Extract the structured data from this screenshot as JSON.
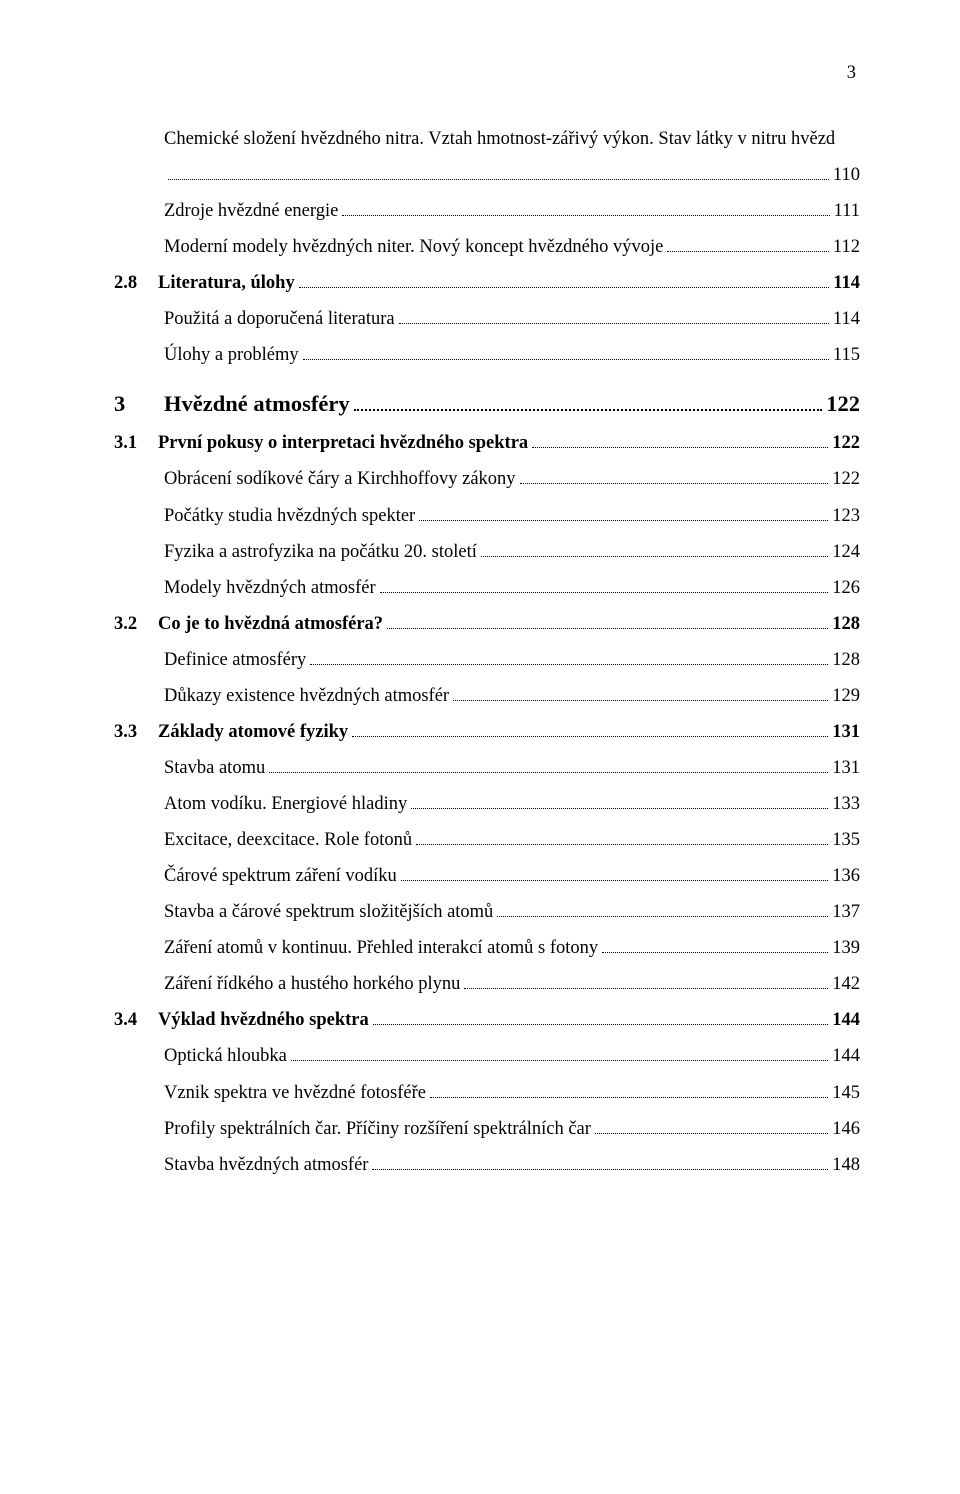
{
  "pageNumber": "3",
  "entries": [
    {
      "level": "sub",
      "text": "Chemické složení hvězdného nitra. Vztah hmotnost-zářivý výkon. Stav látky v nitru hvězd",
      "page": "110",
      "wrap": true
    },
    {
      "level": "sub",
      "text": "Zdroje hvězdné energie",
      "page": "111"
    },
    {
      "level": "sub",
      "text": "Moderní modely hvězdných niter. Nový koncept hvězdného vývoje",
      "page": "112"
    },
    {
      "level": "sec",
      "num": "2.8",
      "text": "Literatura, úlohy",
      "page": "114"
    },
    {
      "level": "sub",
      "text": "Použitá a doporučená literatura",
      "page": "114"
    },
    {
      "level": "sub",
      "text": "Úlohy a problémy",
      "page": "115"
    },
    {
      "level": "chap",
      "num": "3",
      "text": "Hvězdné atmosféry",
      "page": "122"
    },
    {
      "level": "sec",
      "num": "3.1",
      "text": "První pokusy o interpretaci hvězdného spektra",
      "page": "122"
    },
    {
      "level": "sub",
      "text": "Obrácení sodíkové čáry a Kirchhoffovy zákony",
      "page": "122"
    },
    {
      "level": "sub",
      "text": "Počátky studia hvězdných spekter",
      "page": "123"
    },
    {
      "level": "sub",
      "text": "Fyzika a astrofyzika na počátku 20. století",
      "page": "124"
    },
    {
      "level": "sub",
      "text": "Modely hvězdných atmosfér",
      "page": "126"
    },
    {
      "level": "sec",
      "num": "3.2",
      "text": "Co je to hvězdná atmosféra?",
      "page": "128"
    },
    {
      "level": "sub",
      "text": "Definice atmosféry",
      "page": "128"
    },
    {
      "level": "sub",
      "text": "Důkazy existence hvězdných atmosfér",
      "page": "129"
    },
    {
      "level": "sec",
      "num": "3.3",
      "text": "Základy atomové fyziky",
      "page": "131"
    },
    {
      "level": "sub",
      "text": "Stavba atomu",
      "page": "131"
    },
    {
      "level": "sub",
      "text": "Atom vodíku. Energiové hladiny",
      "page": "133"
    },
    {
      "level": "sub",
      "text": "Excitace, deexcitace. Role fotonů",
      "page": "135"
    },
    {
      "level": "sub",
      "text": "Čárové spektrum záření vodíku",
      "page": "136"
    },
    {
      "level": "sub",
      "text": "Stavba a čárové spektrum složitějších atomů",
      "page": "137"
    },
    {
      "level": "sub",
      "text": "Záření atomů v kontinuu. Přehled interakcí atomů s fotony",
      "page": "139"
    },
    {
      "level": "sub",
      "text": "Záření řídkého a hustého horkého plynu",
      "page": "142"
    },
    {
      "level": "sec",
      "num": "3.4",
      "text": "Výklad hvězdného spektra",
      "page": "144"
    },
    {
      "level": "sub",
      "text": "Optická hloubka",
      "page": "144"
    },
    {
      "level": "sub",
      "text": "Vznik spektra ve hvězdné fotosféře",
      "page": "145"
    },
    {
      "level": "sub",
      "text": "Profily spektrálních čar. Příčiny rozšíření spektrálních čar",
      "page": "146"
    },
    {
      "level": "sub",
      "text": "Stavba hvězdných atmosfér",
      "page": "148"
    }
  ]
}
